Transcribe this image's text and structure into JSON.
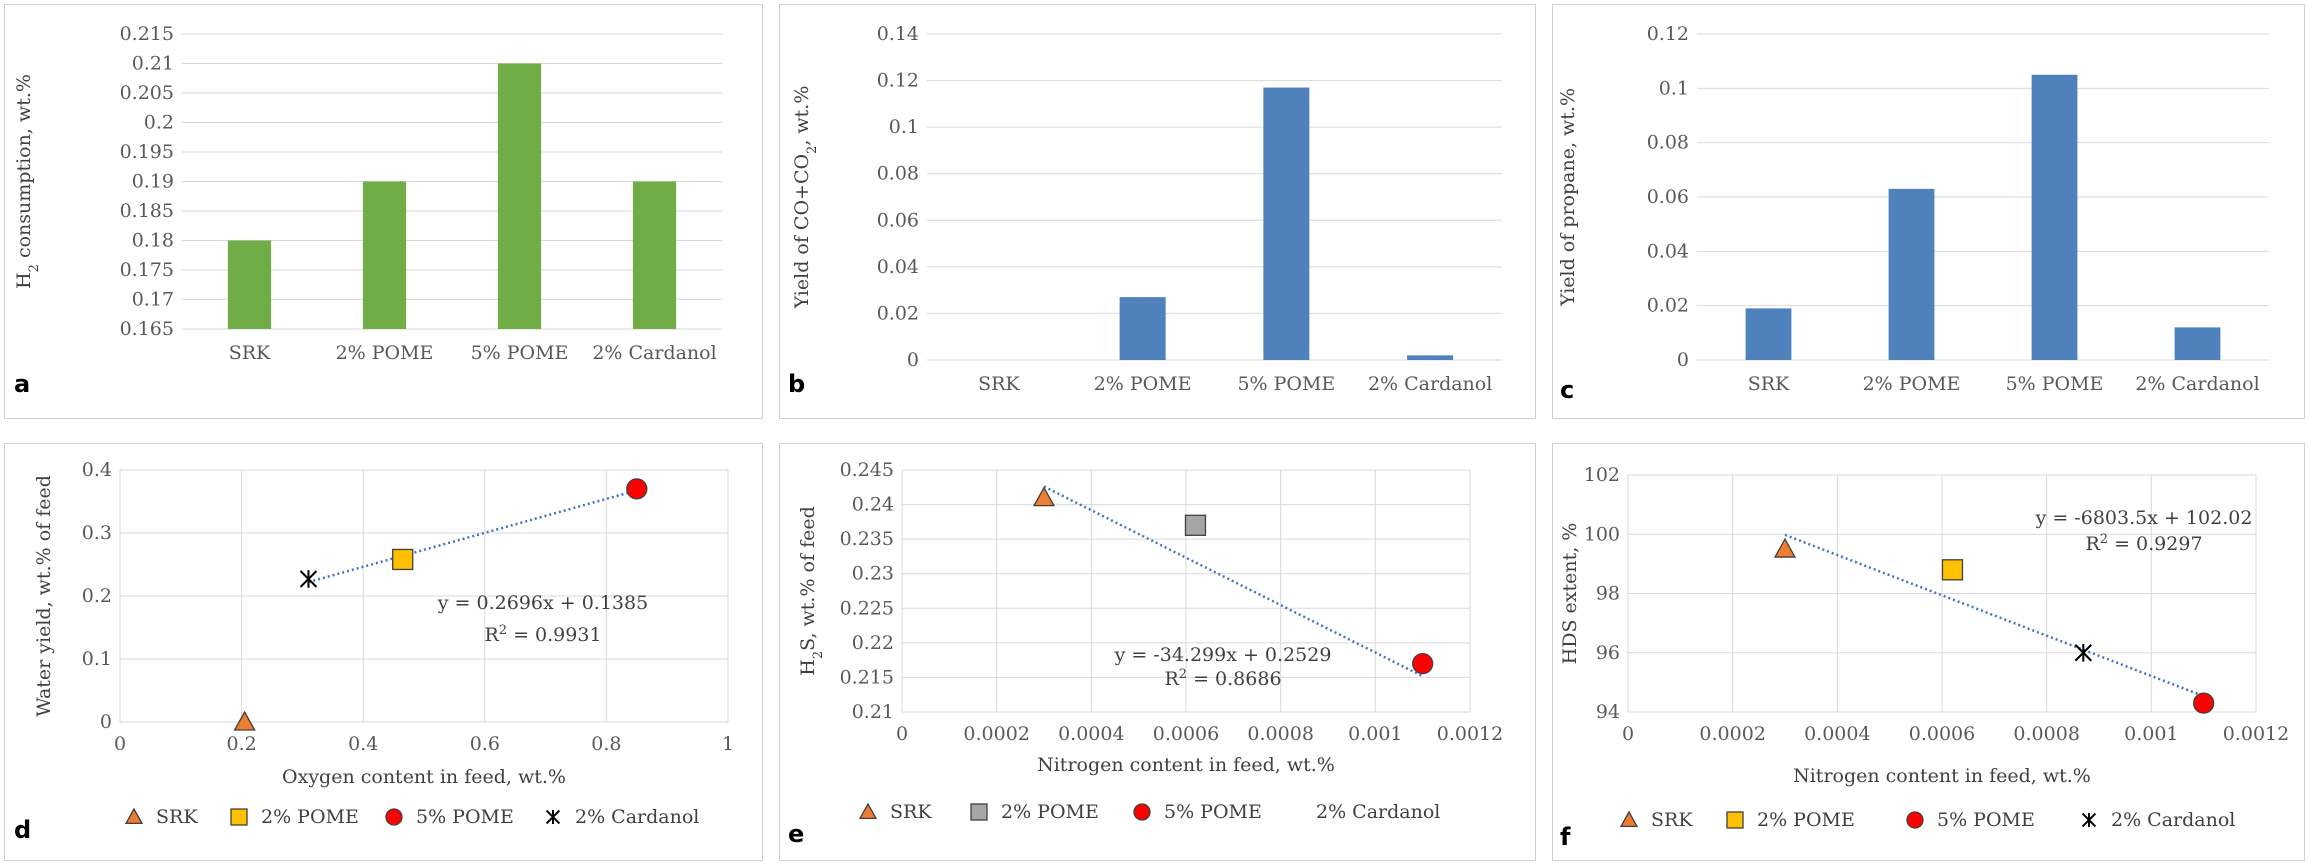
{
  "colors": {
    "green_bar": "#70ad47",
    "blue_bar": "#4f81bd",
    "grid": "#d9d9d9",
    "trend": "#4472c4",
    "srk": "#ed7d31",
    "pome2_yellow": "#ffc000",
    "pome2_gray": "#a6a6a6",
    "pome5": "#ff0000",
    "cardanol": "#000000"
  },
  "chart_data": [
    {
      "id": "a",
      "panel_label": "a",
      "type": "bar",
      "categories": [
        "SRK",
        "2% POME",
        "5% POME",
        "2% Cardanol"
      ],
      "values": [
        0.18,
        0.19,
        0.21,
        0.19
      ],
      "ylim": [
        0.165,
        0.215
      ],
      "yticks": [
        "0.165",
        "0.17",
        "0.175",
        "0.18",
        "0.185",
        "0.19",
        "0.195",
        "0.2",
        "0.205",
        "0.21",
        "0.215"
      ],
      "ylabel_parts": [
        "H",
        "2",
        " consumption, wt.%"
      ],
      "xlabel": "",
      "bar_color": "#70ad47",
      "grid": true
    },
    {
      "id": "b",
      "panel_label": "b",
      "type": "bar",
      "categories": [
        "SRK",
        "2% POME",
        "5% POME",
        "2% Cardanol"
      ],
      "values": [
        0,
        0.027,
        0.117,
        0.002
      ],
      "ylim": [
        0,
        0.14
      ],
      "yticks": [
        "0",
        "0.02",
        "0.04",
        "0.06",
        "0.08",
        "0.1",
        "0.12",
        "0.14"
      ],
      "ylabel_parts": [
        "Yield of CO+CO",
        "2",
        ", wt.%"
      ],
      "xlabel": "",
      "bar_color": "#4f81bd",
      "grid": true
    },
    {
      "id": "c",
      "panel_label": "c",
      "type": "bar",
      "categories": [
        "SRK",
        "2% POME",
        "5% POME",
        "2% Cardanol"
      ],
      "values": [
        0.019,
        0.063,
        0.105,
        0.012
      ],
      "ylim": [
        0,
        0.12
      ],
      "yticks": [
        "0",
        "0.02",
        "0.04",
        "0.06",
        "0.08",
        "0.1",
        "0.12"
      ],
      "ylabel_parts": [
        "Yield of propane, wt.%"
      ],
      "xlabel": "",
      "bar_color": "#4f81bd",
      "grid": true
    },
    {
      "id": "d",
      "panel_label": "d",
      "type": "scatter",
      "xlim": [
        0,
        1
      ],
      "ylim": [
        0,
        0.4
      ],
      "xticks": [
        "0",
        "0.2",
        "0.4",
        "0.6",
        "0.8",
        "1"
      ],
      "yticks": [
        "0",
        "0.1",
        "0.2",
        "0.3",
        "0.4"
      ],
      "xlabel": "Oxygen content in feed, wt.%",
      "ylabel_parts": [
        "Water yield, wt.% of feed"
      ],
      "points": [
        {
          "name": "SRK",
          "x": 0.205,
          "y": 0.0,
          "marker": "triangle",
          "color": "#ed7d31"
        },
        {
          "name": "2% POME",
          "x": 0.465,
          "y": 0.258,
          "marker": "square",
          "color": "#ffc000"
        },
        {
          "name": "5% POME",
          "x": 0.85,
          "y": 0.37,
          "marker": "circle",
          "color": "#ff0000"
        },
        {
          "name": "2% Cardanol",
          "x": 0.31,
          "y": 0.227,
          "marker": "star",
          "color": "#000000"
        }
      ],
      "trendline": {
        "slope": 0.2696,
        "intercept": 0.1385,
        "x_range": [
          0.31,
          0.85
        ]
      },
      "equation": "y = 0.2696x + 0.1385",
      "r2_prefix": "R",
      "r2_sup": "2",
      "r2_value": " = 0.9931",
      "legend": [
        "SRK",
        "2% POME",
        "5% POME",
        "2% Cardanol"
      ],
      "legend_markers": [
        "triangle",
        "square",
        "circle",
        "star"
      ],
      "legend_colors": [
        "#ed7d31",
        "#ffc000",
        "#ff0000",
        "#000000"
      ],
      "grid": true
    },
    {
      "id": "e",
      "panel_label": "e",
      "type": "scatter",
      "xlim": [
        0,
        0.0012
      ],
      "ylim": [
        0.21,
        0.245
      ],
      "xticks": [
        "0",
        "0.0002",
        "0.0004",
        "0.0006",
        "0.0008",
        "0.001",
        "0.0012"
      ],
      "yticks": [
        "0.21",
        "0.215",
        "0.22",
        "0.225",
        "0.23",
        "0.235",
        "0.24",
        "0.245"
      ],
      "xlabel": "Nitrogen content in feed, wt.%",
      "ylabel_parts": [
        "H",
        "2",
        "S, wt.% of feed"
      ],
      "points": [
        {
          "name": "SRK",
          "x": 0.0003,
          "y": 0.241,
          "marker": "triangle",
          "color": "#ed7d31"
        },
        {
          "name": "2% POME",
          "x": 0.00062,
          "y": 0.237,
          "marker": "square",
          "color": "#a6a6a6"
        },
        {
          "name": "5% POME",
          "x": 0.0011,
          "y": 0.217,
          "marker": "circle",
          "color": "#ff0000"
        }
      ],
      "trendline": {
        "slope": -34.299,
        "intercept": 0.2529,
        "x_range": [
          0.0003,
          0.0011
        ]
      },
      "equation": "y = -34.299x + 0.2529",
      "r2_prefix": "R",
      "r2_sup": "2",
      "r2_value": " = 0.8686",
      "legend": [
        "SRK",
        "2% POME",
        "5% POME",
        "2% Cardanol"
      ],
      "legend_markers": [
        "triangle",
        "square",
        "circle",
        "none"
      ],
      "legend_colors": [
        "#ed7d31",
        "#a6a6a6",
        "#ff0000",
        "#000000"
      ],
      "grid": true
    },
    {
      "id": "f",
      "panel_label": "f",
      "type": "scatter",
      "xlim": [
        0,
        0.0012
      ],
      "ylim": [
        94,
        102
      ],
      "xticks": [
        "0",
        "0.0002",
        "0.0004",
        "0.0006",
        "0.0008",
        "0.001",
        "0.0012"
      ],
      "yticks": [
        "94",
        "96",
        "98",
        "100",
        "102"
      ],
      "xlabel": "Nitrogen content in feed, wt.%",
      "ylabel_parts": [
        "HDS extent, %"
      ],
      "points": [
        {
          "name": "SRK",
          "x": 0.0003,
          "y": 99.5,
          "marker": "triangle",
          "color": "#ed7d31"
        },
        {
          "name": "2% POME",
          "x": 0.00062,
          "y": 98.8,
          "marker": "square",
          "color": "#ffc000"
        },
        {
          "name": "5% POME",
          "x": 0.0011,
          "y": 94.3,
          "marker": "circle",
          "color": "#ff0000"
        },
        {
          "name": "2% Cardanol",
          "x": 0.00087,
          "y": 96.0,
          "marker": "star",
          "color": "#000000"
        }
      ],
      "trendline": {
        "slope": -6803.5,
        "intercept": 102.02,
        "x_range": [
          0.0003,
          0.0011
        ]
      },
      "equation": "y = -6803.5x + 102.02",
      "r2_prefix": "R",
      "r2_sup": "2",
      "r2_value": " = 0.9297",
      "legend": [
        "SRK",
        "2% POME",
        "5% POME",
        "2% Cardanol"
      ],
      "legend_markers": [
        "triangle",
        "square",
        "circle",
        "star"
      ],
      "legend_colors": [
        "#ed7d31",
        "#ffc000",
        "#ff0000",
        "#000000"
      ],
      "grid": true
    }
  ]
}
